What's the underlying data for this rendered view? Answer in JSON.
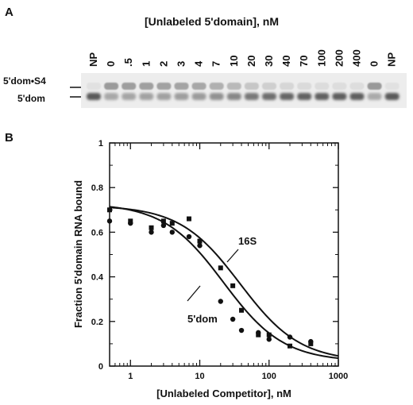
{
  "panel_a": {
    "letter": "A",
    "title": "[Unlabeled 5'domain], nM",
    "lanes": [
      "NP",
      "0",
      ".5",
      "1",
      "2",
      "3",
      "4",
      "7",
      "10",
      "20",
      "30",
      "40",
      "70",
      "100",
      "200",
      "400",
      "0",
      "NP"
    ],
    "band_labels": {
      "complex": "5'dom•S4",
      "free": "5'dom"
    }
  },
  "panel_b": {
    "letter": "B"
  },
  "chart_data": {
    "type": "scatter",
    "xlabel": "[Unlabeled Competitor], nM",
    "ylabel": "Fraction 5'domain RNA bound",
    "x_scale": "log",
    "xlim": [
      0.5,
      1000
    ],
    "ylim": [
      0,
      1
    ],
    "x_ticks": [
      1,
      10,
      100,
      1000
    ],
    "x_tick_labels": [
      "1",
      "10",
      "100",
      "1000"
    ],
    "y_ticks": [
      0,
      0.2,
      0.4,
      0.6,
      0.8,
      1
    ],
    "y_tick_labels": [
      "0",
      "0.2",
      "0.4",
      "0.6",
      "0.8",
      "1"
    ],
    "grid": false,
    "series": [
      {
        "name": "16S",
        "marker": "square",
        "points": [
          {
            "x": 0.5,
            "y": 0.7
          },
          {
            "x": 1,
            "y": 0.65
          },
          {
            "x": 2,
            "y": 0.62
          },
          {
            "x": 3,
            "y": 0.65
          },
          {
            "x": 4,
            "y": 0.64
          },
          {
            "x": 7,
            "y": 0.66
          },
          {
            "x": 10,
            "y": 0.56
          },
          {
            "x": 20,
            "y": 0.44
          },
          {
            "x": 30,
            "y": 0.36
          },
          {
            "x": 40,
            "y": 0.25
          },
          {
            "x": 70,
            "y": 0.14
          },
          {
            "x": 100,
            "y": 0.14
          },
          {
            "x": 200,
            "y": 0.09
          },
          {
            "x": 400,
            "y": 0.1
          }
        ],
        "fit": {
          "top": 0.72,
          "bottom": 0.02,
          "ic50": 38,
          "hill": 1.0
        }
      },
      {
        "name": "5'dom",
        "marker": "circle",
        "points": [
          {
            "x": 0.5,
            "y": 0.65
          },
          {
            "x": 1,
            "y": 0.64
          },
          {
            "x": 2,
            "y": 0.6
          },
          {
            "x": 3,
            "y": 0.63
          },
          {
            "x": 4,
            "y": 0.6
          },
          {
            "x": 7,
            "y": 0.58
          },
          {
            "x": 10,
            "y": 0.54
          },
          {
            "x": 20,
            "y": 0.29
          },
          {
            "x": 30,
            "y": 0.21
          },
          {
            "x": 40,
            "y": 0.16
          },
          {
            "x": 70,
            "y": 0.15
          },
          {
            "x": 100,
            "y": 0.12
          },
          {
            "x": 200,
            "y": 0.13
          },
          {
            "x": 400,
            "y": 0.11
          }
        ],
        "fit": {
          "top": 0.73,
          "bottom": 0.02,
          "ic50": 22,
          "hill": 1.0
        }
      }
    ],
    "annotations": [
      "16S",
      "5'dom"
    ]
  }
}
